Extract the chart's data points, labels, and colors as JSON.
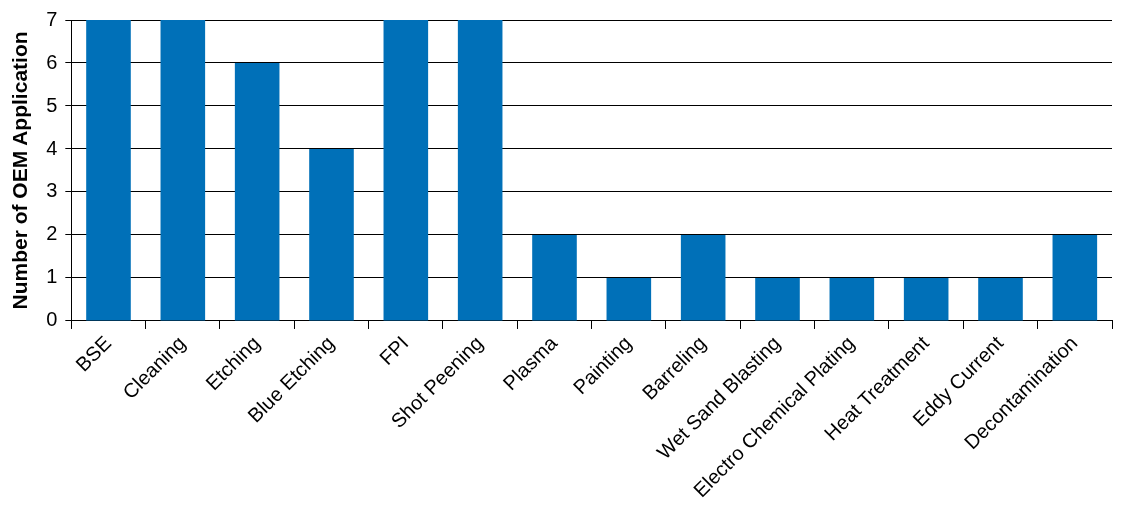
{
  "chart_data": {
    "type": "bar",
    "ylabel": "Number of OEM Application",
    "categories": [
      "BSE",
      "Cleaning",
      "Etching",
      "Blue Etching",
      "FPI",
      "Shot Peening",
      "Plasma",
      "Painting",
      "Barreling",
      "Wet Sand Blasting",
      "Electro Chemical Plating",
      "Heat Treatment",
      "Eddy Current",
      "Decontamination"
    ],
    "values": [
      7,
      7,
      6,
      4,
      7,
      7,
      2,
      1,
      2,
      1,
      1,
      1,
      1,
      2
    ],
    "color": "#0070b8",
    "ylim": [
      0,
      7
    ],
    "yticks": [
      0,
      1,
      2,
      3,
      4,
      5,
      6,
      7
    ],
    "grid": "y"
  }
}
